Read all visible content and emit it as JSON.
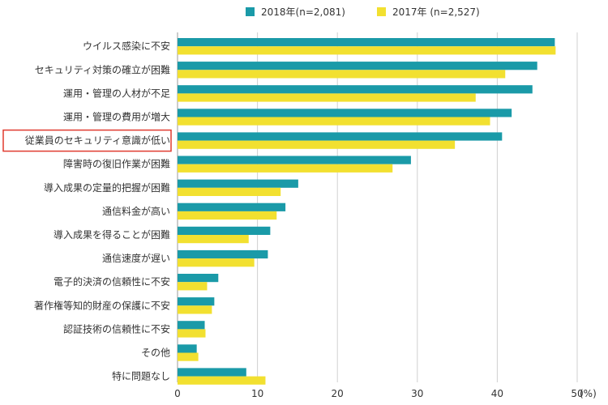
{
  "chart_data": {
    "type": "bar",
    "orientation": "horizontal",
    "categories": [
      "ウイルス感染に不安",
      "セキュリティ対策の確立が困難",
      "運用・管理の人材が不足",
      "運用・管理の費用が増大",
      "従業員のセキュリティ意識が低い",
      "障害時の復旧作業が困難",
      "導入成果の定量的把握が困難",
      "通信料金が高い",
      "導入成果を得ることが困難",
      "通信速度が遅い",
      "電子的決済の信頼性に不安",
      "著作権等知的財産の保護に不安",
      "認証技術の信頼性に不安",
      "その他",
      "特に問題なし"
    ],
    "series": [
      {
        "name": "2018年(n=2,081)",
        "color": "#1a9aa8",
        "values": [
          47.2,
          45.0,
          44.4,
          41.8,
          40.6,
          29.2,
          15.1,
          13.5,
          11.6,
          11.3,
          5.1,
          4.6,
          3.4,
          2.4,
          8.6
        ]
      },
      {
        "name": "2017年 (n=2,527)",
        "color": "#f2e030",
        "values": [
          47.3,
          41.0,
          37.3,
          39.1,
          34.7,
          26.9,
          12.9,
          12.4,
          8.9,
          9.6,
          3.7,
          4.3,
          3.5,
          2.6,
          11.0
        ]
      }
    ],
    "xlim": [
      0,
      50
    ],
    "xticks": [
      "0",
      "10",
      "20",
      "30",
      "40",
      "50"
    ],
    "xunit": "(%)",
    "highlighted_category": "従業員のセキュリティ意識が低い",
    "highlight_color": "#e03a2f",
    "grid": true,
    "legend_position": "top"
  }
}
